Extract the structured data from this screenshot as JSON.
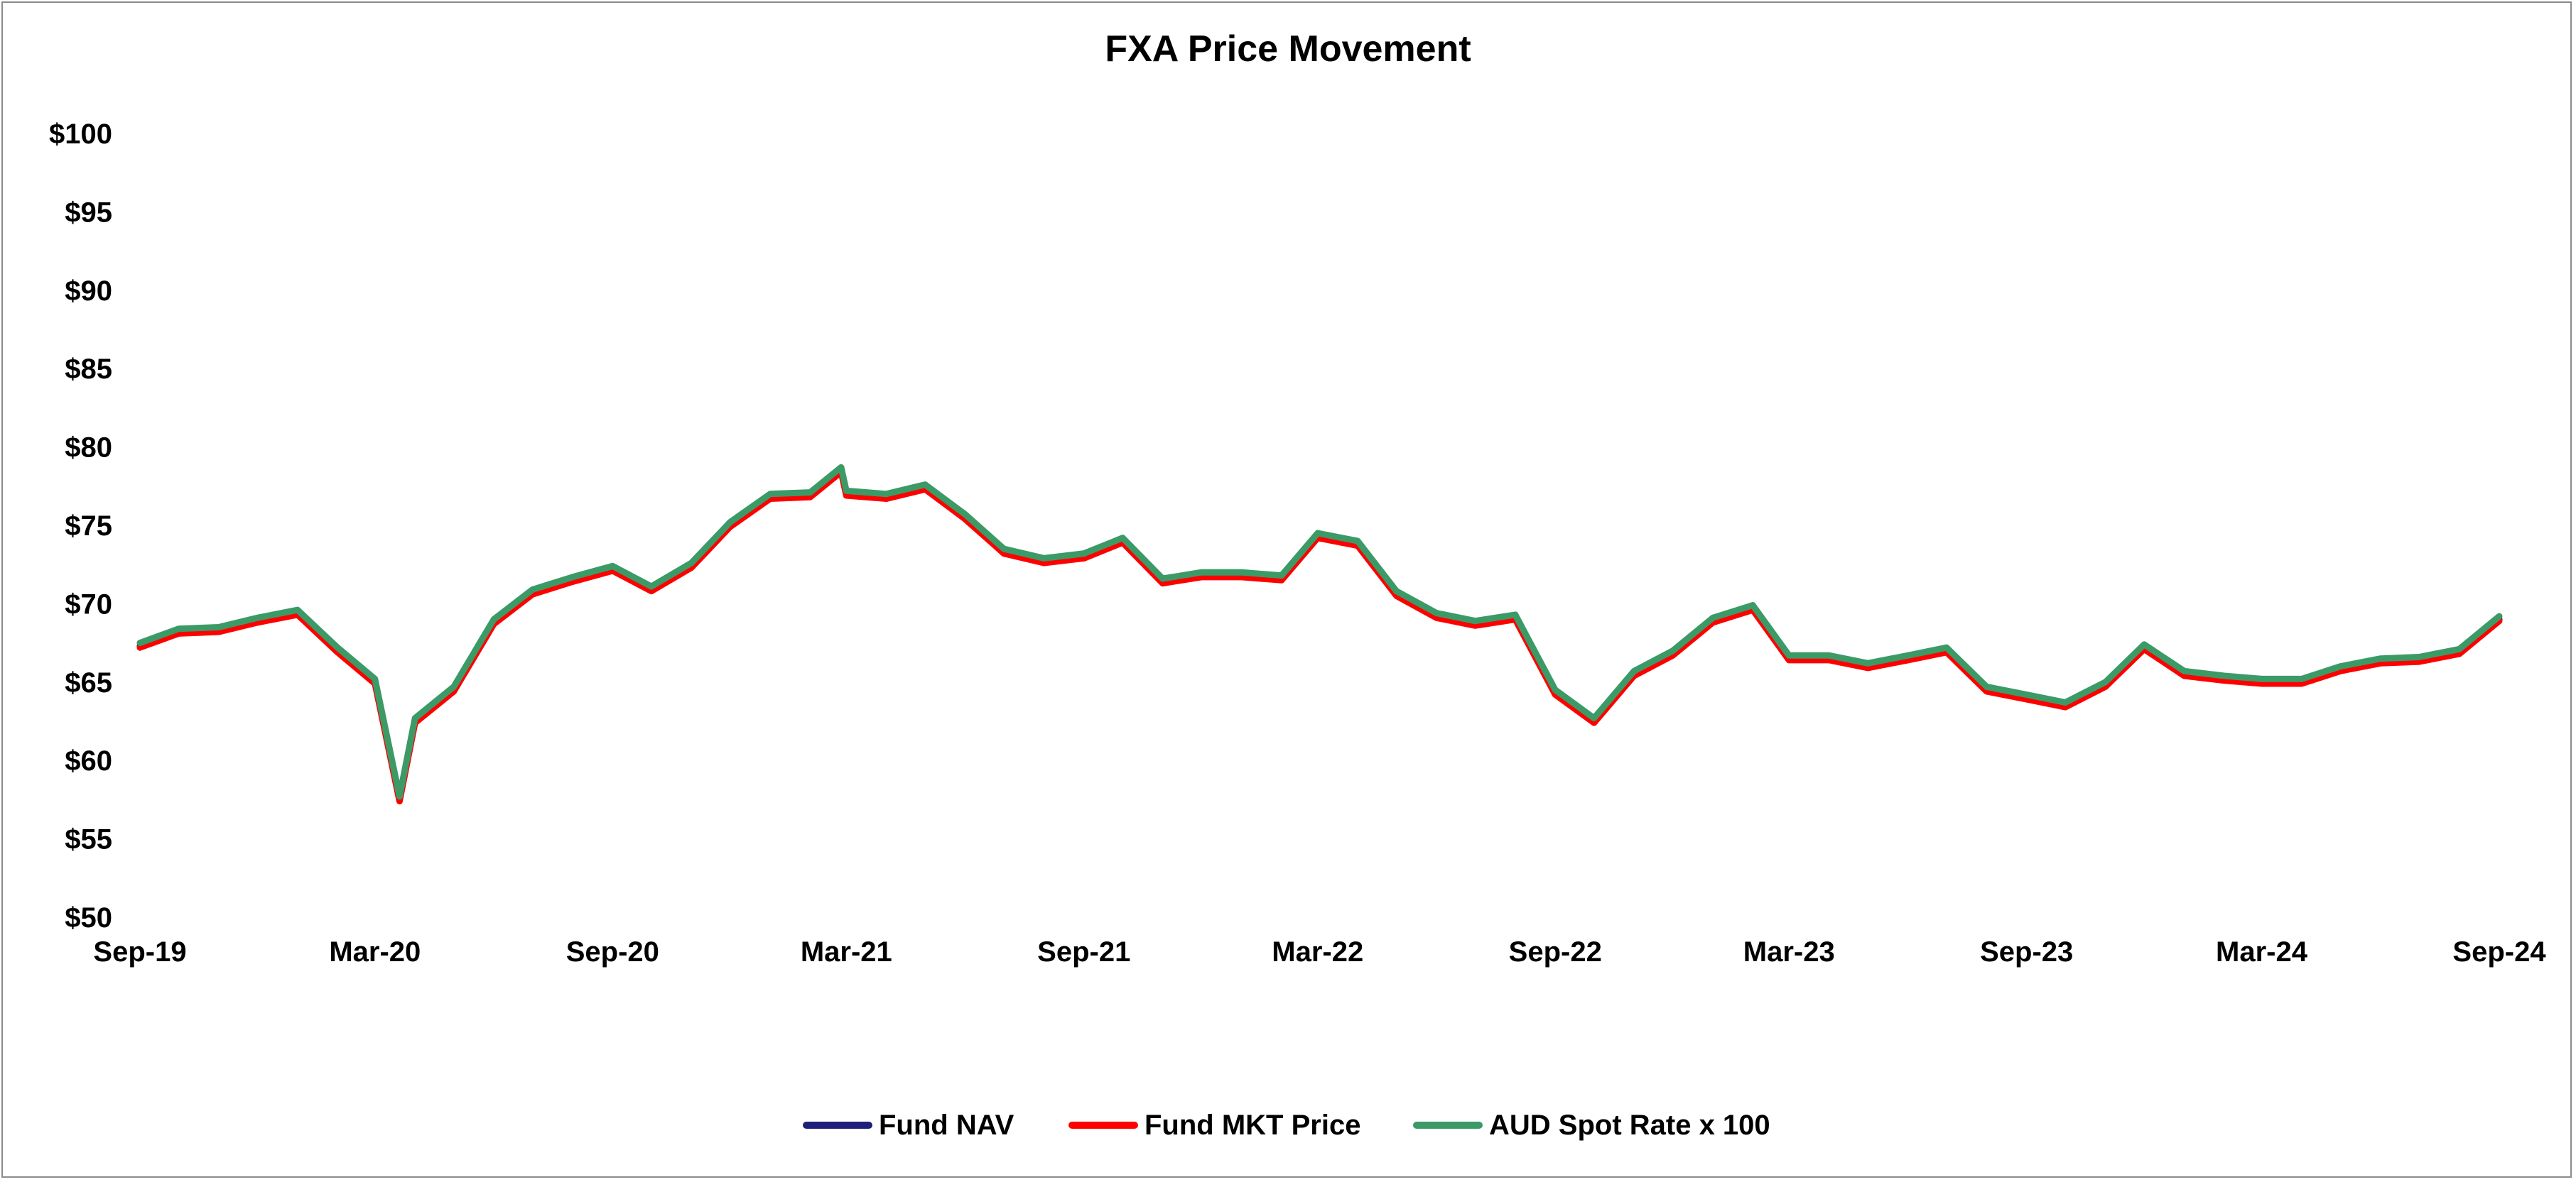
{
  "chart_data": {
    "type": "line",
    "title": "FXA Price Movement",
    "xlabel": "",
    "ylabel": "",
    "ylim": [
      50,
      100
    ],
    "y_tick_prefix": "$",
    "y_ticks": [
      50,
      55,
      60,
      65,
      70,
      75,
      80,
      85,
      90,
      95,
      100
    ],
    "x_range": [
      "2019-09",
      "2024-09"
    ],
    "x_ticks": [
      "Sep-19",
      "Mar-20",
      "Sep-20",
      "Mar-21",
      "Sep-21",
      "Mar-22",
      "Sep-22",
      "Mar-23",
      "Sep-23",
      "Mar-24",
      "Sep-24"
    ],
    "x_tick_dates": [
      "2019-09",
      "2020-03",
      "2020-09",
      "2021-03",
      "2021-09",
      "2022-03",
      "2022-09",
      "2023-03",
      "2023-09",
      "2024-03",
      "2024-09"
    ],
    "grid": false,
    "legend_position": "bottom",
    "x": [
      "2019-09-01",
      "2019-10-01",
      "2019-11-01",
      "2019-12-01",
      "2020-01-01",
      "2020-02-01",
      "2020-03-01",
      "2020-03-20",
      "2020-04-01",
      "2020-05-01",
      "2020-06-01",
      "2020-07-01",
      "2020-08-01",
      "2020-09-01",
      "2020-10-01",
      "2020-11-01",
      "2020-12-01",
      "2021-01-01",
      "2021-02-01",
      "2021-02-25",
      "2021-03-01",
      "2021-04-01",
      "2021-05-01",
      "2021-06-01",
      "2021-07-01",
      "2021-08-01",
      "2021-09-01",
      "2021-10-01",
      "2021-11-01",
      "2021-12-01",
      "2022-01-01",
      "2022-02-01",
      "2022-03-01",
      "2022-04-01",
      "2022-05-01",
      "2022-06-01",
      "2022-07-01",
      "2022-08-01",
      "2022-09-01",
      "2022-10-01",
      "2022-11-01",
      "2022-12-01",
      "2023-01-01",
      "2023-02-01",
      "2023-03-01",
      "2023-04-01",
      "2023-05-01",
      "2023-06-01",
      "2023-07-01",
      "2023-08-01",
      "2023-09-01",
      "2023-10-01",
      "2023-11-01",
      "2023-12-01",
      "2024-01-01",
      "2024-02-01",
      "2024-03-01",
      "2024-04-01",
      "2024-05-01",
      "2024-06-01",
      "2024-07-01",
      "2024-08-01",
      "2024-09-01"
    ],
    "series": [
      {
        "name": "Fund NAV",
        "color": "#1f1f7a",
        "values": [
          67.3,
          68.2,
          68.3,
          68.9,
          69.4,
          67.0,
          65.0,
          57.5,
          62.5,
          64.5,
          68.8,
          70.7,
          71.5,
          72.2,
          70.9,
          72.4,
          75.0,
          76.8,
          76.9,
          78.5,
          77.0,
          76.8,
          77.4,
          75.5,
          73.3,
          72.7,
          73.0,
          74.0,
          71.4,
          71.8,
          71.8,
          71.6,
          74.3,
          73.8,
          70.6,
          69.2,
          68.7,
          69.1,
          64.3,
          62.5,
          65.5,
          66.8,
          68.9,
          69.7,
          66.5,
          66.5,
          66.0,
          66.5,
          67.0,
          64.5,
          64.0,
          63.5,
          64.8,
          67.2,
          65.5,
          65.2,
          65.0,
          65.0,
          65.8,
          66.3,
          66.4,
          66.9,
          69.0
        ]
      },
      {
        "name": "Fund MKT Price",
        "color": "#ff0000",
        "values": [
          67.2,
          68.1,
          68.2,
          68.8,
          69.3,
          66.9,
          64.9,
          57.4,
          62.4,
          64.4,
          68.7,
          70.6,
          71.4,
          72.1,
          70.8,
          72.3,
          74.9,
          76.7,
          76.8,
          78.4,
          76.9,
          76.7,
          77.3,
          75.4,
          73.2,
          72.6,
          72.9,
          73.9,
          71.3,
          71.7,
          71.7,
          71.5,
          74.2,
          73.7,
          70.5,
          69.1,
          68.6,
          69.0,
          64.2,
          62.4,
          65.4,
          66.7,
          68.8,
          69.6,
          66.4,
          66.4,
          65.9,
          66.4,
          66.9,
          64.4,
          63.9,
          63.4,
          64.7,
          67.1,
          65.4,
          65.1,
          64.9,
          64.9,
          65.7,
          66.2,
          66.3,
          66.8,
          68.9
        ]
      },
      {
        "name": "AUD Spot Rate x 100",
        "color": "#3c9a67",
        "values": [
          67.5,
          68.4,
          68.5,
          69.1,
          69.6,
          67.2,
          65.2,
          57.7,
          62.7,
          64.7,
          69.0,
          70.9,
          71.7,
          72.4,
          71.1,
          72.6,
          75.2,
          77.0,
          77.1,
          78.7,
          77.2,
          77.0,
          77.6,
          75.7,
          73.5,
          72.9,
          73.2,
          74.2,
          71.6,
          72.0,
          72.0,
          71.8,
          74.5,
          74.0,
          70.8,
          69.4,
          68.9,
          69.3,
          64.5,
          62.7,
          65.7,
          67.0,
          69.1,
          69.9,
          66.7,
          66.7,
          66.2,
          66.7,
          67.2,
          64.7,
          64.2,
          63.7,
          65.0,
          67.4,
          65.7,
          65.4,
          65.2,
          65.2,
          66.0,
          66.5,
          66.6,
          67.1,
          69.2
        ]
      }
    ]
  }
}
